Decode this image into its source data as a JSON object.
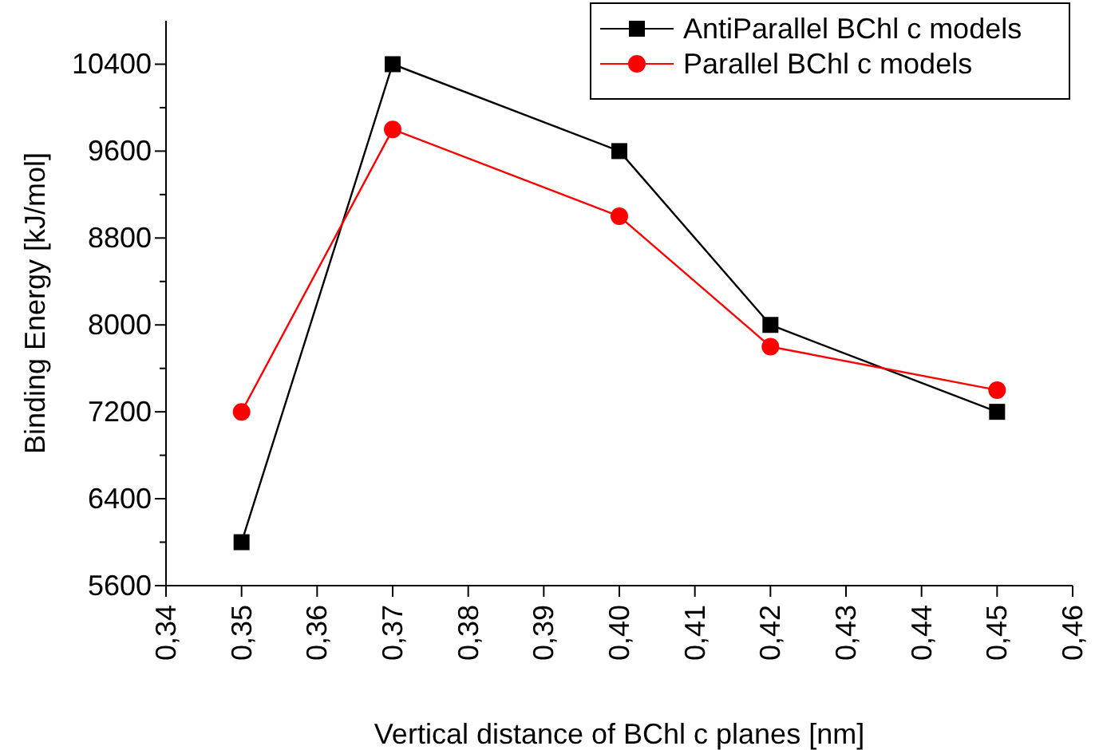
{
  "chart_data": {
    "type": "line",
    "xlabel": "Vertical distance of BChl c planes [nm]",
    "ylabel": "Binding Energy [kJ/mol]",
    "x": [
      0.35,
      0.37,
      0.4,
      0.42,
      0.45
    ],
    "series": [
      {
        "name": "AntiParallel BChl c models",
        "color": "#000000",
        "marker": "square",
        "values": [
          6000,
          10400,
          9600,
          8000,
          7200
        ]
      },
      {
        "name": "Parallel BChl c models",
        "color": "#ff0000",
        "marker": "circle",
        "values": [
          7200,
          9800,
          9000,
          7800,
          7400
        ]
      }
    ],
    "xlim": [
      0.34,
      0.46
    ],
    "xticks": [
      {
        "value": 0.34,
        "label": "0,34"
      },
      {
        "value": 0.35,
        "label": "0,35"
      },
      {
        "value": 0.36,
        "label": "0,36"
      },
      {
        "value": 0.37,
        "label": "0,37"
      },
      {
        "value": 0.38,
        "label": "0,38"
      },
      {
        "value": 0.39,
        "label": "0,39"
      },
      {
        "value": 0.4,
        "label": "0,40"
      },
      {
        "value": 0.41,
        "label": "0,41"
      },
      {
        "value": 0.42,
        "label": "0,42"
      },
      {
        "value": 0.43,
        "label": "0,43"
      },
      {
        "value": 0.44,
        "label": "0,44"
      },
      {
        "value": 0.45,
        "label": "0,45"
      },
      {
        "value": 0.46,
        "label": "0,46"
      }
    ],
    "ylim": [
      5600,
      10800
    ],
    "yticks": [
      5600,
      {
        "value": 6000,
        "label": null
      },
      6400,
      {
        "value": 6800,
        "label": null
      },
      7200,
      {
        "value": 7600,
        "label": null
      },
      8000,
      {
        "value": 8400,
        "label": null
      },
      8800,
      {
        "value": 9200,
        "label": null
      },
      9600,
      {
        "value": 10000,
        "label": null
      },
      10400
    ],
    "grid": false,
    "legend": "top right",
    "line_style": "solid"
  }
}
